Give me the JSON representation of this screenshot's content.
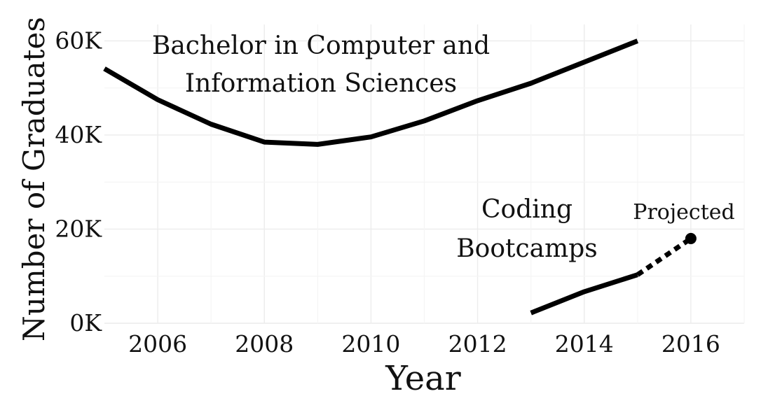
{
  "chart_data": {
    "type": "line",
    "title": "",
    "xlabel": "Year",
    "ylabel": "Number of Graduates",
    "xlim": [
      2005,
      2017
    ],
    "ylim": [
      0,
      62000
    ],
    "x_ticks": [
      2006,
      2008,
      2010,
      2012,
      2014,
      2016
    ],
    "x_tick_labels": [
      "2006",
      "2008",
      "2010",
      "2012",
      "2014",
      "2016"
    ],
    "y_ticks": [
      0,
      20000,
      40000,
      60000
    ],
    "y_tick_labels": [
      "0K",
      "20K",
      "40K",
      "60K"
    ],
    "grid": true,
    "legend": "none",
    "series": [
      {
        "name": "Bachelor in Computer and Information Sciences",
        "x": [
          2005,
          2006,
          2007,
          2008,
          2009,
          2010,
          2011,
          2012,
          2013,
          2014,
          2015
        ],
        "y": [
          54100,
          47500,
          42300,
          38500,
          38000,
          39600,
          43000,
          47300,
          51000,
          55500,
          60000
        ]
      },
      {
        "name": "Coding Bootcamps",
        "x": [
          2013,
          2014,
          2015
        ],
        "y": [
          2200,
          6700,
          10300
        ]
      },
      {
        "name": "Coding Bootcamps (projected)",
        "style": "dashed",
        "x": [
          2015,
          2016
        ],
        "y": [
          10300,
          18000
        ]
      }
    ],
    "annotations": {
      "bachelor_line1": "Bachelor in Computer and",
      "bachelor_line2": "Information Sciences",
      "bootcamp_line1": "Coding",
      "bootcamp_line2": "Bootcamps",
      "projected": "Projected"
    },
    "projected_point": {
      "x": 2016,
      "y": 18000
    },
    "colors": {
      "line": "#000000",
      "grid": "#ececec",
      "background": "#ffffff"
    }
  }
}
